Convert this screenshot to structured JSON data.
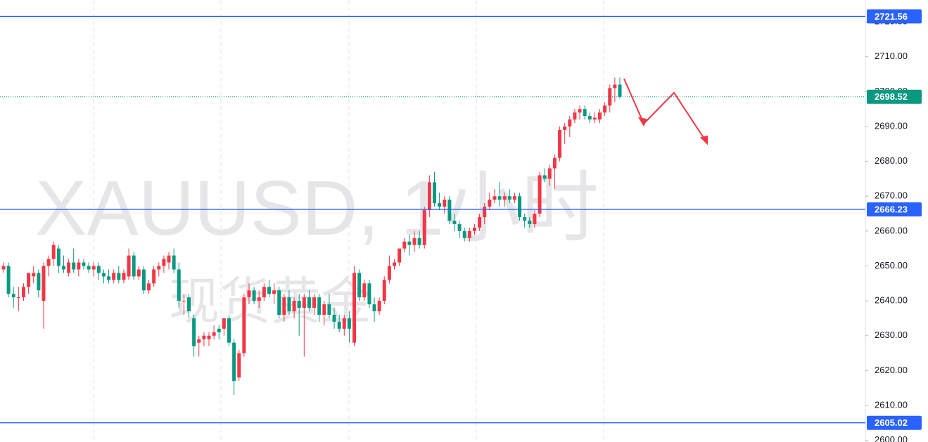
{
  "chart_data": {
    "type": "candlestick",
    "watermark": [
      "XAUUSD, 1小时",
      "现货黄金"
    ],
    "up_color": "#f23645",
    "down_color": "#089981",
    "level_color": "#2962ff",
    "last_color": "#089981",
    "ylim": [
      2599.52,
      2726.27
    ],
    "yticks": [
      {
        "value": 2600,
        "label": "2600.00"
      },
      {
        "value": 2610,
        "label": "2610.00"
      },
      {
        "value": 2620,
        "label": "2620.00"
      },
      {
        "value": 2630,
        "label": "2630.00"
      },
      {
        "value": 2640,
        "label": "2640.00"
      },
      {
        "value": 2650,
        "label": "2650.00"
      },
      {
        "value": 2660,
        "label": "2660.00"
      },
      {
        "value": 2670,
        "label": "2670.00"
      },
      {
        "value": 2680,
        "label": "2680.00"
      },
      {
        "value": 2690,
        "label": "2690.00"
      },
      {
        "value": 2700,
        "label": "2700.00"
      },
      {
        "value": 2710,
        "label": "2710.00"
      },
      {
        "value": 2720,
        "label": "2720.00"
      }
    ],
    "levels": [
      2721.56,
      2666.23,
      2605.02
    ],
    "last_price": 2698.52,
    "candles": [
      [
        2649,
        2651,
        2648,
        2650
      ],
      [
        2650,
        2651,
        2641,
        2642
      ],
      [
        2642,
        2644,
        2638,
        2641
      ],
      [
        2641,
        2644,
        2637,
        2641
      ],
      [
        2641,
        2645,
        2640,
        2644
      ],
      [
        2644,
        2648,
        2642,
        2648
      ],
      [
        2647,
        2650,
        2645,
        2648
      ],
      [
        2648,
        2649,
        2641,
        2643
      ],
      [
        2640,
        2651,
        2632,
        2650
      ],
      [
        2650,
        2653,
        2647,
        2652
      ],
      [
        2652,
        2657,
        2650,
        2656
      ],
      [
        2655,
        2656,
        2648,
        2650
      ],
      [
        2650,
        2653,
        2648,
        2649
      ],
      [
        2648,
        2652,
        2647,
        2651
      ],
      [
        2651,
        2655,
        2648,
        2649
      ],
      [
        2649,
        2652,
        2647,
        2651
      ],
      [
        2651,
        2652,
        2649,
        2650
      ],
      [
        2650,
        2651,
        2648,
        2649
      ],
      [
        2649,
        2651,
        2647,
        2650
      ],
      [
        2650,
        2651,
        2646,
        2648
      ],
      [
        2648,
        2649,
        2645,
        2647
      ],
      [
        2647,
        2649,
        2645,
        2646
      ],
      [
        2646,
        2649,
        2645,
        2648
      ],
      [
        2648,
        2650,
        2645,
        2646
      ],
      [
        2646,
        2649,
        2645,
        2648
      ],
      [
        2647,
        2655,
        2646,
        2653
      ],
      [
        2653,
        2654,
        2646,
        2647
      ],
      [
        2647,
        2650,
        2646,
        2649
      ],
      [
        2649,
        2650,
        2642,
        2643
      ],
      [
        2643,
        2646,
        2642,
        2645
      ],
      [
        2645,
        2650,
        2644,
        2649
      ],
      [
        2649,
        2651,
        2647,
        2650
      ],
      [
        2650,
        2653,
        2648,
        2652
      ],
      [
        2651,
        2654,
        2649,
        2653
      ],
      [
        2653,
        2655,
        2648,
        2649
      ],
      [
        2649,
        2651,
        2638,
        2640
      ],
      [
        2640,
        2642,
        2636,
        2640
      ],
      [
        2641,
        2642,
        2635,
        2637
      ],
      [
        2635,
        2636,
        2624,
        2627
      ],
      [
        2628,
        2630,
        2624,
        2629
      ],
      [
        2629,
        2631,
        2627,
        2630
      ],
      [
        2629,
        2631,
        2627,
        2630
      ],
      [
        2630,
        2633,
        2629,
        2631
      ],
      [
        2632,
        2633,
        2629,
        2631
      ],
      [
        2632,
        2635,
        2630,
        2635
      ],
      [
        2635,
        2636,
        2627,
        2628
      ],
      [
        2628,
        2629,
        2613,
        2617
      ],
      [
        2618,
        2626,
        2617,
        2625
      ],
      [
        2625,
        2642,
        2624,
        2641
      ],
      [
        2641,
        2645,
        2639,
        2643
      ],
      [
        2643,
        2644,
        2639,
        2640
      ],
      [
        2640,
        2643,
        2638,
        2641
      ],
      [
        2641,
        2645,
        2640,
        2644
      ],
      [
        2644,
        2646,
        2641,
        2642
      ],
      [
        2642,
        2645,
        2639,
        2643
      ],
      [
        2643,
        2644,
        2635,
        2636
      ],
      [
        2636,
        2642,
        2634,
        2641
      ],
      [
        2641,
        2643,
        2636,
        2637
      ],
      [
        2637,
        2641,
        2635,
        2640
      ],
      [
        2640,
        2642,
        2630,
        2638
      ],
      [
        2638,
        2642,
        2624,
        2641
      ],
      [
        2641,
        2643,
        2637,
        2638
      ],
      [
        2638,
        2642,
        2636,
        2641
      ],
      [
        2641,
        2642,
        2634,
        2636
      ],
      [
        2636,
        2640,
        2633,
        2639
      ],
      [
        2639,
        2642,
        2635,
        2636
      ],
      [
        2636,
        2638,
        2632,
        2634
      ],
      [
        2634,
        2636,
        2631,
        2632
      ],
      [
        2632,
        2636,
        2630,
        2635
      ],
      [
        2635,
        2637,
        2628,
        2632
      ],
      [
        2628,
        2650,
        2627,
        2648
      ],
      [
        2648,
        2649,
        2640,
        2641
      ],
      [
        2641,
        2646,
        2640,
        2645
      ],
      [
        2645,
        2646,
        2638,
        2639
      ],
      [
        2639,
        2641,
        2634,
        2637
      ],
      [
        2637,
        2641,
        2636,
        2640
      ],
      [
        2640,
        2647,
        2639,
        2646
      ],
      [
        2646,
        2653,
        2645,
        2650
      ],
      [
        2650,
        2652,
        2649,
        2651
      ],
      [
        2651,
        2655,
        2650,
        2655
      ],
      [
        2655,
        2658,
        2654,
        2657
      ],
      [
        2657,
        2659,
        2653,
        2656
      ],
      [
        2656,
        2660,
        2654,
        2658
      ],
      [
        2658,
        2660,
        2655,
        2656
      ],
      [
        2656,
        2667,
        2655,
        2666
      ],
      [
        2666,
        2676,
        2664,
        2674
      ],
      [
        2674,
        2677,
        2667,
        2668
      ],
      [
        2668,
        2671,
        2666,
        2667
      ],
      [
        2667,
        2670,
        2665,
        2669
      ],
      [
        2669,
        2670,
        2662,
        2663
      ],
      [
        2663,
        2665,
        2660,
        2662
      ],
      [
        2662,
        2663,
        2658,
        2660
      ],
      [
        2660,
        2661,
        2657,
        2658
      ],
      [
        2658,
        2661,
        2657,
        2660
      ],
      [
        2660,
        2662,
        2659,
        2661
      ],
      [
        2661,
        2665,
        2660,
        2664
      ],
      [
        2664,
        2668,
        2662,
        2667
      ],
      [
        2667,
        2671,
        2666,
        2669
      ],
      [
        2669,
        2672,
        2668,
        2670
      ],
      [
        2670,
        2674,
        2667,
        2669
      ],
      [
        2669,
        2671,
        2667,
        2670
      ],
      [
        2670,
        2672,
        2668,
        2669
      ],
      [
        2669,
        2671,
        2668,
        2670
      ],
      [
        2670,
        2671,
        2663,
        2664
      ],
      [
        2664,
        2665,
        2661,
        2663
      ],
      [
        2663,
        2664,
        2661,
        2662
      ],
      [
        2662,
        2666,
        2661,
        2665
      ],
      [
        2665,
        2677,
        2664,
        2676
      ],
      [
        2676,
        2678,
        2674,
        2675
      ],
      [
        2675,
        2679,
        2673,
        2678
      ],
      [
        2678,
        2682,
        2672,
        2681
      ],
      [
        2681,
        2690,
        2680,
        2689
      ],
      [
        2689,
        2691,
        2685,
        2690
      ],
      [
        2690,
        2693,
        2687,
        2692
      ],
      [
        2692,
        2695,
        2691,
        2694
      ],
      [
        2694,
        2696,
        2692,
        2695
      ],
      [
        2695,
        2696,
        2692,
        2693
      ],
      [
        2693,
        2694,
        2691,
        2692
      ],
      [
        2692,
        2694,
        2691,
        2692.5
      ],
      [
        2692,
        2695,
        2691,
        2694
      ],
      [
        2694,
        2697,
        2693,
        2696
      ],
      [
        2696,
        2702,
        2694,
        2701
      ],
      [
        2701,
        2704,
        2697,
        2702
      ],
      [
        2702,
        2704,
        2698,
        2698.52
      ]
    ]
  }
}
